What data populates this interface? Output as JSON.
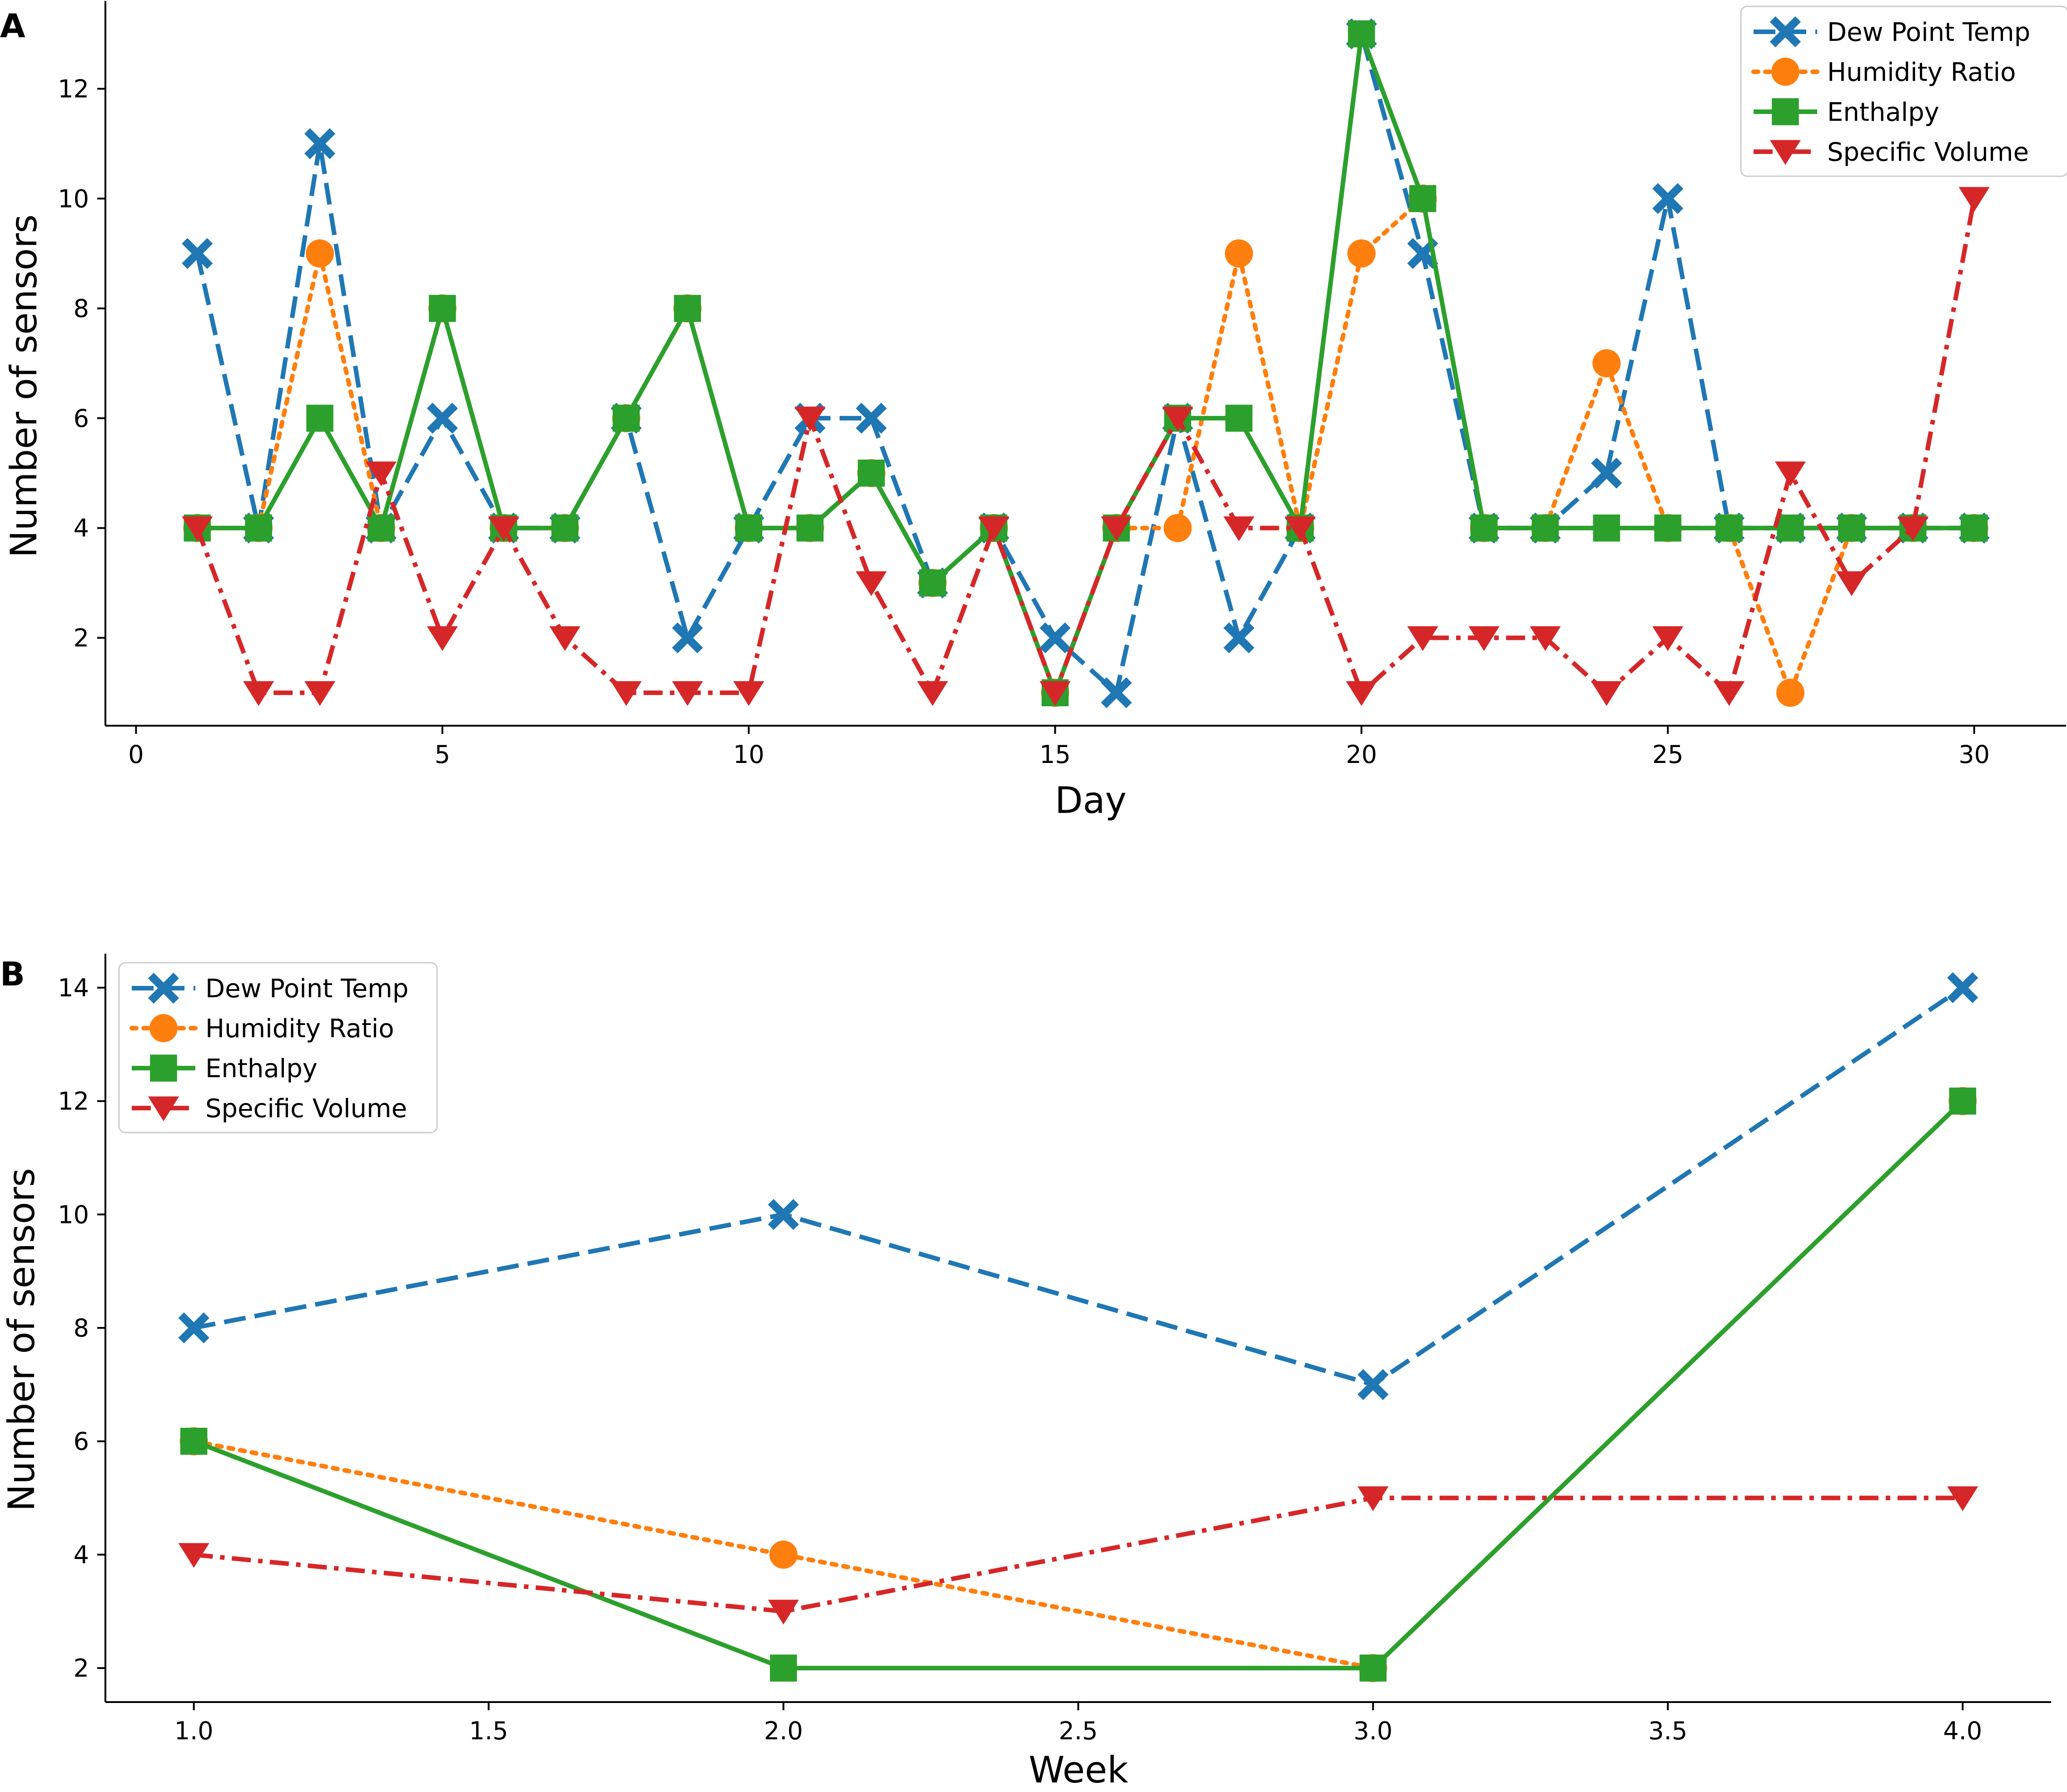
{
  "colors": {
    "dew": "#1f77b4",
    "humidity": "#ff7f0e",
    "enthalpy": "#2ca02c",
    "specific": "#d62728",
    "axis": "#000000"
  },
  "chart_data": [
    {
      "panel": "A",
      "type": "line",
      "title": "",
      "xlabel": "Day",
      "ylabel": "Number of sensors",
      "xlim": [
        -0.5,
        31.5
      ],
      "ylim": [
        0.4,
        13.6
      ],
      "xticks": [
        0,
        5,
        10,
        15,
        20,
        25,
        30
      ],
      "xtick_labels": [
        "0",
        "5",
        "10",
        "15",
        "20",
        "25",
        "30"
      ],
      "yticks": [
        2,
        4,
        6,
        8,
        10,
        12
      ],
      "ytick_labels": [
        "2",
        "4",
        "6",
        "8",
        "10",
        "12"
      ],
      "legend_position": "top-right",
      "x": [
        1,
        2,
        3,
        4,
        5,
        6,
        7,
        8,
        9,
        10,
        11,
        12,
        13,
        14,
        15,
        16,
        17,
        18,
        19,
        20,
        21,
        22,
        23,
        24,
        25,
        26,
        27,
        28,
        29,
        30
      ],
      "series": [
        {
          "key": "dew",
          "name": "Dew Point Temp",
          "marker": "X",
          "dash": "dashed",
          "values": [
            9,
            4,
            11,
            4,
            6,
            4,
            4,
            6,
            2,
            4,
            6,
            6,
            3,
            4,
            2,
            1,
            6,
            2,
            4,
            13,
            9,
            4,
            4,
            5,
            10,
            4,
            4,
            4,
            4,
            4
          ]
        },
        {
          "key": "humidity",
          "name": "Humidity Ratio",
          "marker": "o",
          "dash": "dotted",
          "values": [
            4,
            4,
            9,
            4,
            8,
            4,
            4,
            6,
            8,
            4,
            4,
            5,
            3,
            4,
            1,
            4,
            4,
            9,
            4,
            9,
            10,
            4,
            4,
            7,
            4,
            4,
            1,
            4,
            4,
            4
          ]
        },
        {
          "key": "enthalpy",
          "name": "Enthalpy",
          "marker": "s",
          "dash": "solid",
          "values": [
            4,
            4,
            6,
            4,
            8,
            4,
            4,
            6,
            8,
            4,
            4,
            5,
            3,
            4,
            1,
            4,
            6,
            6,
            4,
            13,
            10,
            4,
            4,
            4,
            4,
            4,
            4,
            4,
            4,
            4
          ]
        },
        {
          "key": "specific",
          "name": "Specific Volume",
          "marker": "v",
          "dash": "dashdot",
          "values": [
            4,
            1,
            1,
            5,
            2,
            4,
            2,
            1,
            1,
            1,
            6,
            3,
            1,
            4,
            1,
            4,
            6,
            4,
            4,
            1,
            2,
            2,
            2,
            1,
            2,
            1,
            5,
            3,
            4,
            10
          ]
        }
      ]
    },
    {
      "panel": "B",
      "type": "line",
      "title": "",
      "xlabel": "Week",
      "ylabel": "Number of sensors",
      "xlim": [
        0.85,
        4.15
      ],
      "ylim": [
        1.4,
        14.6
      ],
      "xticks": [
        1.0,
        1.5,
        2.0,
        2.5,
        3.0,
        3.5,
        4.0
      ],
      "xtick_labels": [
        "1.0",
        "1.5",
        "2.0",
        "2.5",
        "3.0",
        "3.5",
        "4.0"
      ],
      "yticks": [
        2,
        4,
        6,
        8,
        10,
        12,
        14
      ],
      "ytick_labels": [
        "2",
        "4",
        "6",
        "8",
        "10",
        "12",
        "14"
      ],
      "legend_position": "top-left",
      "x": [
        1,
        2,
        3,
        4
      ],
      "series": [
        {
          "key": "dew",
          "name": "Dew Point Temp",
          "marker": "X",
          "dash": "dashed",
          "values": [
            8,
            10,
            7,
            14
          ]
        },
        {
          "key": "humidity",
          "name": "Humidity Ratio",
          "marker": "o",
          "dash": "dotted",
          "values": [
            6,
            4,
            2,
            12
          ]
        },
        {
          "key": "enthalpy",
          "name": "Enthalpy",
          "marker": "s",
          "dash": "solid",
          "values": [
            6,
            2,
            2,
            12
          ]
        },
        {
          "key": "specific",
          "name": "Specific Volume",
          "marker": "v",
          "dash": "dashdot",
          "values": [
            4,
            3,
            5,
            5
          ]
        }
      ]
    }
  ]
}
